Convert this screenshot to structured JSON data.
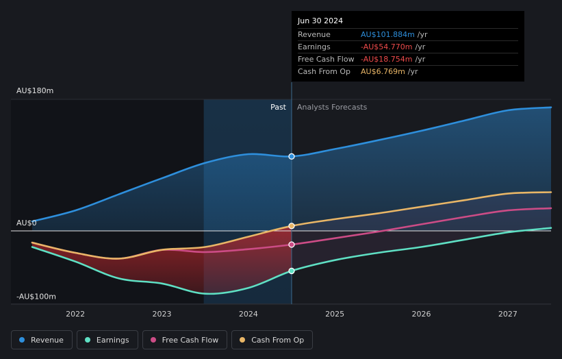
{
  "chart_data": {
    "type": "line",
    "x_ticks": [
      "2022",
      "2023",
      "2024",
      "2025",
      "2026",
      "2027"
    ],
    "y_ticks": [
      {
        "value": 180,
        "label": "AU$180m"
      },
      {
        "value": 0,
        "label": "AU$0"
      },
      {
        "value": -100,
        "label": "-AU$100m"
      }
    ],
    "ylim": [
      -100,
      180
    ],
    "xlim": [
      2021.5,
      2027.5
    ],
    "divider_x": 2024.5,
    "past_label": "Past",
    "forecast_label": "Analysts Forecasts",
    "series": [
      {
        "name": "Revenue",
        "color": "#2e8fdc",
        "points": [
          [
            2021.5,
            13
          ],
          [
            2022,
            28
          ],
          [
            2022.5,
            50
          ],
          [
            2023,
            72
          ],
          [
            2023.5,
            93
          ],
          [
            2024,
            105
          ],
          [
            2024.5,
            101.884
          ],
          [
            2025,
            112
          ],
          [
            2025.5,
            124
          ],
          [
            2026,
            137
          ],
          [
            2026.5,
            151
          ],
          [
            2027,
            165
          ],
          [
            2027.5,
            169
          ]
        ]
      },
      {
        "name": "Earnings",
        "color": "#5fe0c4",
        "points": [
          [
            2021.5,
            -22
          ],
          [
            2022,
            -42
          ],
          [
            2022.5,
            -65
          ],
          [
            2023,
            -72
          ],
          [
            2023.5,
            -86
          ],
          [
            2024,
            -78
          ],
          [
            2024.5,
            -54.77
          ],
          [
            2025,
            -40
          ],
          [
            2025.5,
            -30
          ],
          [
            2026,
            -22
          ],
          [
            2026.5,
            -12
          ],
          [
            2027,
            -2
          ],
          [
            2027.5,
            4
          ]
        ]
      },
      {
        "name": "Free Cash Flow",
        "color": "#cc4c86",
        "points": [
          [
            2021.5,
            -16
          ],
          [
            2022,
            -30
          ],
          [
            2022.5,
            -38
          ],
          [
            2023,
            -26
          ],
          [
            2023.5,
            -29
          ],
          [
            2024,
            -25
          ],
          [
            2024.5,
            -18.754
          ],
          [
            2025,
            -10
          ],
          [
            2025.5,
            -1
          ],
          [
            2026,
            9
          ],
          [
            2026.5,
            19
          ],
          [
            2027,
            28
          ],
          [
            2027.5,
            31
          ]
        ]
      },
      {
        "name": "Cash From Op",
        "color": "#e9b667",
        "points": [
          [
            2021.5,
            -16
          ],
          [
            2022,
            -30
          ],
          [
            2022.5,
            -38
          ],
          [
            2023,
            -26
          ],
          [
            2023.5,
            -22
          ],
          [
            2024,
            -8
          ],
          [
            2024.5,
            6.769
          ],
          [
            2025,
            16
          ],
          [
            2025.5,
            24
          ],
          [
            2026,
            33
          ],
          [
            2026.5,
            42
          ],
          [
            2027,
            51
          ],
          [
            2027.5,
            53
          ]
        ]
      }
    ]
  },
  "tooltip": {
    "date": "Jun 30 2024",
    "rows": [
      {
        "label": "Revenue",
        "value": "AU$101.884m",
        "unit": "/yr",
        "color": "#2e8fdc"
      },
      {
        "label": "Earnings",
        "value": "-AU$54.770m",
        "unit": "/yr",
        "color": "#ef4b4b"
      },
      {
        "label": "Free Cash Flow",
        "value": "-AU$18.754m",
        "unit": "/yr",
        "color": "#ef4b4b"
      },
      {
        "label": "Cash From Op",
        "value": "AU$6.769m",
        "unit": "/yr",
        "color": "#e9b667"
      }
    ]
  },
  "legend": [
    {
      "label": "Revenue",
      "color": "#2e8fdc"
    },
    {
      "label": "Earnings",
      "color": "#5fe0c4"
    },
    {
      "label": "Free Cash Flow",
      "color": "#cc4c86"
    },
    {
      "label": "Cash From Op",
      "color": "#e9b667"
    }
  ]
}
